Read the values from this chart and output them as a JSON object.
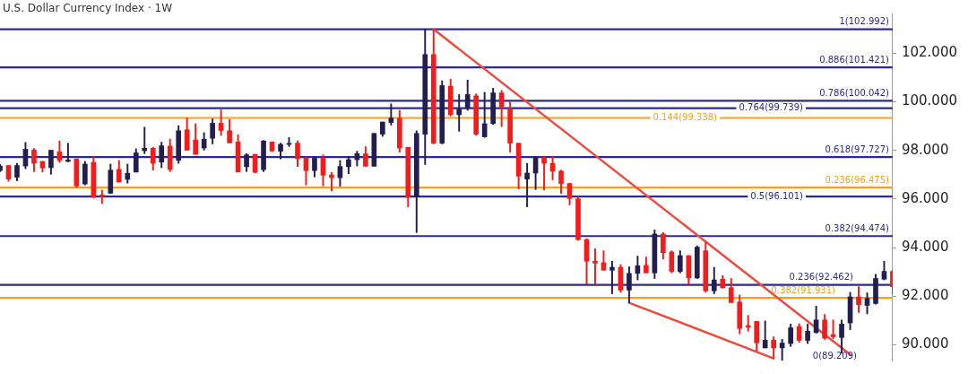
{
  "chart_data": {
    "type": "candlestick",
    "title": "U.S. Dollar Currency Index · 1W",
    "categories": [
      null,
      null,
      null,
      null,
      null,
      null,
      null,
      null,
      null,
      null,
      null,
      null,
      null,
      null,
      null,
      null,
      null,
      null,
      null,
      null,
      null,
      null,
      null,
      null,
      null,
      null,
      null,
      null,
      null,
      null,
      null,
      null,
      null,
      null,
      null,
      null,
      null,
      null,
      null,
      null,
      null,
      null,
      null,
      null,
      null,
      null,
      null,
      null,
      null,
      null,
      null,
      null,
      null,
      null,
      null,
      null,
      null,
      null,
      null,
      null,
      null,
      null,
      null,
      null,
      null,
      null,
      null,
      null,
      null,
      null,
      null,
      null,
      null,
      null,
      null,
      null,
      null,
      null,
      null,
      null,
      null,
      null,
      null,
      null,
      null,
      null,
      null,
      null,
      null,
      null,
      null,
      null,
      null,
      null,
      null,
      null,
      null,
      null,
      null,
      null,
      null,
      null,
      null,
      null,
      null,
      null
    ],
    "ohlc": [
      [
        97.17,
        97.42,
        97.13,
        97.36
      ],
      [
        97.38,
        97.38,
        96.73,
        96.82
      ],
      [
        96.9,
        97.47,
        96.75,
        97.38
      ],
      [
        97.36,
        98.33,
        97.25,
        98.05
      ],
      [
        98.02,
        98.08,
        97.13,
        97.47
      ],
      [
        97.55,
        97.55,
        97.11,
        97.28
      ],
      [
        97.29,
        98.01,
        97.02,
        98.01
      ],
      [
        97.95,
        98.39,
        97.51,
        97.59
      ],
      [
        97.55,
        98.3,
        97.53,
        97.61
      ],
      [
        97.65,
        97.65,
        96.47,
        96.54
      ],
      [
        96.62,
        97.55,
        96.58,
        97.44
      ],
      [
        97.51,
        97.76,
        96.07,
        96.07
      ],
      [
        96.17,
        96.37,
        95.81,
        96.11
      ],
      [
        96.24,
        97.44,
        96.22,
        97.19
      ],
      [
        97.22,
        97.59,
        96.7,
        96.7
      ],
      [
        96.81,
        97.44,
        96.65,
        97.06
      ],
      [
        97.11,
        98.07,
        97.11,
        97.9
      ],
      [
        97.99,
        98.96,
        97.87,
        98.09
      ],
      [
        98.09,
        98.13,
        97.19,
        97.47
      ],
      [
        97.52,
        98.34,
        97.29,
        98.19
      ],
      [
        98.18,
        98.47,
        97.13,
        97.22
      ],
      [
        97.59,
        99.02,
        97.47,
        98.81
      ],
      [
        98.85,
        99.34,
        98.01,
        98.01
      ],
      [
        98.43,
        99.1,
        97.84,
        97.84
      ],
      [
        98.1,
        98.73,
        98.01,
        98.46
      ],
      [
        98.5,
        99.3,
        98.27,
        99.12
      ],
      [
        99.12,
        99.67,
        98.62,
        98.82
      ],
      [
        98.81,
        99.28,
        98.31,
        98.31
      ],
      [
        98.35,
        98.65,
        97.11,
        97.11
      ],
      [
        97.33,
        97.87,
        97.13,
        97.82
      ],
      [
        97.84,
        97.84,
        97.07,
        97.1
      ],
      [
        97.21,
        98.41,
        97.13,
        98.39
      ],
      [
        98.35,
        98.35,
        97.95,
        97.98
      ],
      [
        97.97,
        98.3,
        97.65,
        98.25
      ],
      [
        98.25,
        98.53,
        98.16,
        98.29
      ],
      [
        98.3,
        98.39,
        97.34,
        97.66
      ],
      [
        97.68,
        97.73,
        96.58,
        97.17
      ],
      [
        97.17,
        97.73,
        96.91,
        97.68
      ],
      [
        97.68,
        97.82,
        96.54,
        96.98
      ],
      [
        96.99,
        97.1,
        96.33,
        96.88
      ],
      [
        96.88,
        97.59,
        96.53,
        97.34
      ],
      [
        97.33,
        97.73,
        97.04,
        97.62
      ],
      [
        97.62,
        97.97,
        97.36,
        97.87
      ],
      [
        97.86,
        98.16,
        97.35,
        97.35
      ],
      [
        97.35,
        98.7,
        97.35,
        98.7
      ],
      [
        98.67,
        99.17,
        98.58,
        99.17
      ],
      [
        99.15,
        99.92,
        99.04,
        99.33
      ],
      [
        99.33,
        99.65,
        97.93,
        98.1
      ],
      [
        98.13,
        98.13,
        95.68,
        96.07
      ],
      [
        96.09,
        98.81,
        94.62,
        98.7
      ],
      [
        98.67,
        102.99,
        97.42,
        101.95
      ],
      [
        101.95,
        102.99,
        98.27,
        98.3
      ],
      [
        98.3,
        100.87,
        98.27,
        100.67
      ],
      [
        100.65,
        100.93,
        99.42,
        99.47
      ],
      [
        99.47,
        100.3,
        98.79,
        99.7
      ],
      [
        99.76,
        100.9,
        99.65,
        100.3
      ],
      [
        100.25,
        100.33,
        98.62,
        98.67
      ],
      [
        98.56,
        100.39,
        98.54,
        99.1
      ],
      [
        99.11,
        100.56,
        99.07,
        100.37
      ],
      [
        100.37,
        100.47,
        98.98,
        99.79
      ],
      [
        99.7,
        99.99,
        97.93,
        98.3
      ],
      [
        98.3,
        98.3,
        96.42,
        96.94
      ],
      [
        96.82,
        97.47,
        95.68,
        97.07
      ],
      [
        97.07,
        97.73,
        96.39,
        97.7
      ],
      [
        97.7,
        97.76,
        96.37,
        97.47
      ],
      [
        97.47,
        97.76,
        96.79,
        97.15
      ],
      [
        97.15,
        97.19,
        96.22,
        96.64
      ],
      [
        96.64,
        96.64,
        95.76,
        96.02
      ],
      [
        96.01,
        96.1,
        94.3,
        94.33
      ],
      [
        94.33,
        94.37,
        92.5,
        93.44
      ],
      [
        93.44,
        93.95,
        92.5,
        93.36
      ],
      [
        93.38,
        93.87,
        93.07,
        93.07
      ],
      [
        93.07,
        93.44,
        92.1,
        93.19
      ],
      [
        93.19,
        93.3,
        92.16,
        92.25
      ],
      [
        92.25,
        93.21,
        91.73,
        92.94
      ],
      [
        92.94,
        93.65,
        92.67,
        93.25
      ],
      [
        93.27,
        93.61,
        92.96,
        92.96
      ],
      [
        92.96,
        94.73,
        92.73,
        94.56
      ],
      [
        94.56,
        94.62,
        93.53,
        93.79
      ],
      [
        93.82,
        93.87,
        92.96,
        93.02
      ],
      [
        93.02,
        93.87,
        92.96,
        93.67
      ],
      [
        93.67,
        93.67,
        92.5,
        92.75
      ],
      [
        92.75,
        94.07,
        92.73,
        94.02
      ],
      [
        93.87,
        94.22,
        92.16,
        92.22
      ],
      [
        92.22,
        93.19,
        92.1,
        92.67
      ],
      [
        92.7,
        92.85,
        92.33,
        92.35
      ],
      [
        92.35,
        92.73,
        91.74,
        91.74
      ],
      [
        91.76,
        92.05,
        90.45,
        90.67
      ],
      [
        90.79,
        91.21,
        90.56,
        90.73
      ],
      [
        90.96,
        90.96,
        89.76,
        90.08
      ],
      [
        89.87,
        90.98,
        89.87,
        90.19
      ],
      [
        90.19,
        90.33,
        89.42,
        89.87
      ],
      [
        89.87,
        90.22,
        89.36,
        90.07
      ],
      [
        90.05,
        90.85,
        89.93,
        90.7
      ],
      [
        90.75,
        90.87,
        90.1,
        90.18
      ],
      [
        90.18,
        90.85,
        90.05,
        90.56
      ],
      [
        90.5,
        91.59,
        90.48,
        91.02
      ],
      [
        91.02,
        91.25,
        90.22,
        90.27
      ],
      [
        90.42,
        91.02,
        90.25,
        90.33
      ],
      [
        90.3,
        91.02,
        89.65,
        90.85
      ],
      [
        90.9,
        92.16,
        90.62,
        91.97
      ],
      [
        91.97,
        92.39,
        91.33,
        91.65
      ],
      [
        91.62,
        92.14,
        91.27,
        91.91
      ],
      [
        91.7,
        92.9,
        91.67,
        92.73
      ],
      [
        92.7,
        93.44,
        92.67,
        93.02
      ],
      [
        93.02,
        93.07,
        92.1,
        92.39
      ]
    ],
    "series": [
      {
        "type": "line",
        "color": "#f04a3e",
        "values": [
          null,
          null,
          null,
          null,
          null,
          null,
          null,
          null,
          null,
          null,
          null,
          null,
          null,
          null,
          null,
          null,
          null,
          null,
          null,
          null,
          null,
          null,
          null,
          null,
          null,
          null,
          null,
          null,
          null,
          null,
          null,
          null,
          null,
          null,
          null,
          null,
          null,
          null,
          null,
          null,
          null,
          null,
          null,
          null,
          null,
          null,
          null,
          null,
          null,
          null,
          null,
          102.99,
          null,
          null,
          null,
          null,
          null,
          null,
          null,
          null,
          null,
          null,
          null,
          null,
          null,
          null,
          null,
          null,
          null,
          null,
          null,
          null,
          null,
          null,
          null,
          null,
          null,
          null,
          null,
          null,
          null,
          null,
          null,
          null,
          null,
          null,
          null,
          null,
          null,
          null,
          null,
          null,
          null,
          null,
          null,
          null,
          null,
          null,
          null,
          null,
          89.6,
          null,
          null,
          null,
          null,
          null
        ]
      },
      {
        "type": "line",
        "color": "#f04a3e",
        "values": [
          null,
          null,
          null,
          null,
          null,
          null,
          null,
          null,
          null,
          null,
          null,
          null,
          null,
          null,
          null,
          null,
          null,
          null,
          null,
          null,
          null,
          null,
          null,
          null,
          null,
          null,
          null,
          null,
          null,
          null,
          null,
          null,
          null,
          null,
          null,
          null,
          null,
          null,
          null,
          null,
          null,
          null,
          null,
          null,
          null,
          null,
          null,
          null,
          null,
          null,
          null,
          null,
          null,
          null,
          null,
          null,
          null,
          null,
          null,
          null,
          null,
          null,
          null,
          null,
          null,
          null,
          null,
          null,
          null,
          null,
          null,
          null,
          null,
          null,
          91.73,
          null,
          null,
          null,
          null,
          null,
          null,
          null,
          null,
          null,
          null,
          null,
          null,
          null,
          null,
          null,
          null,
          89.44,
          null,
          null,
          null,
          null,
          null,
          null,
          null,
          null,
          null,
          null,
          null,
          null,
          null,
          null
        ]
      }
    ],
    "ylim": [
      89.35,
      103.64
    ],
    "yticks": [
      {
        "value": 90,
        "label": "90.000"
      },
      {
        "value": 92,
        "label": "92.000"
      },
      {
        "value": 94,
        "label": "94.000"
      },
      {
        "value": 96,
        "label": "96.000"
      },
      {
        "value": 98,
        "label": "98.000"
      },
      {
        "value": 100,
        "label": "100.000"
      },
      {
        "value": 102,
        "label": "102.000"
      }
    ],
    "tick_labels": "y",
    "grid": false,
    "legend": false,
    "marker": "none",
    "ref_lines": [
      {
        "axis": "y",
        "value": 102.992,
        "label": "1(102.992)",
        "color": "#2c2a8c"
      },
      {
        "axis": "y",
        "value": 101.421,
        "label": "0.886(101.421)",
        "color": "#2c2a8c"
      },
      {
        "axis": "y",
        "value": 100.042,
        "label": "0.786(100.042)",
        "color": "#2c2a8c"
      },
      {
        "axis": "y",
        "value": 99.739,
        "label": "0.764(99.739)",
        "color": "#2c2a8c"
      },
      {
        "axis": "y",
        "value": 99.338,
        "label": "0.144(99.338)",
        "color": "#f8a01c"
      },
      {
        "axis": "y",
        "value": 97.727,
        "label": "0.618(97.727)",
        "color": "#2c2a8c"
      },
      {
        "axis": "y",
        "value": 96.475,
        "label": "0.236(96.475)",
        "color": "#f8a01c"
      },
      {
        "axis": "y",
        "value": 96.101,
        "label": "0.5(96.101)",
        "color": "#2c2a8c"
      },
      {
        "axis": "y",
        "value": 94.474,
        "label": "0.382(94.474)",
        "color": "#2c2a8c"
      },
      {
        "axis": "y",
        "value": 92.462,
        "label": "0.236(92.462)",
        "color": "#2c2a8c"
      },
      {
        "axis": "y",
        "value": 91.931,
        "label": "0.382(91.931)",
        "color": "#f8a01c"
      }
    ],
    "annotations": [
      "0(89.209)"
    ]
  }
}
